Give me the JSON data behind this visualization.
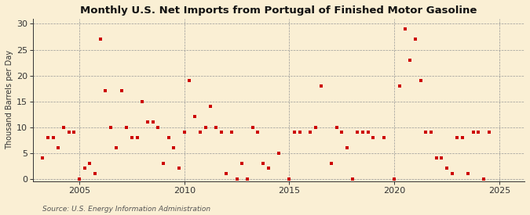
{
  "title": "Monthly U.S. Net Imports from Portugal of Finished Motor Gasoline",
  "ylabel": "Thousand Barrels per Day",
  "source": "Source: U.S. Energy Information Administration",
  "background_color": "#faefd4",
  "marker_color": "#cc0000",
  "xlim": [
    2002.8,
    2026.2
  ],
  "ylim": [
    -0.5,
    31
  ],
  "yticks": [
    0,
    5,
    10,
    15,
    20,
    25,
    30
  ],
  "xticks": [
    2005,
    2010,
    2015,
    2020,
    2025
  ],
  "data": [
    [
      2003.25,
      4
    ],
    [
      2003.5,
      8
    ],
    [
      2003.75,
      8
    ],
    [
      2004.0,
      6
    ],
    [
      2004.25,
      10
    ],
    [
      2004.5,
      9
    ],
    [
      2004.75,
      9
    ],
    [
      2005.0,
      0
    ],
    [
      2005.25,
      2
    ],
    [
      2005.5,
      3
    ],
    [
      2005.75,
      1
    ],
    [
      2006.0,
      27
    ],
    [
      2006.25,
      17
    ],
    [
      2006.5,
      10
    ],
    [
      2006.75,
      6
    ],
    [
      2007.0,
      17
    ],
    [
      2007.25,
      10
    ],
    [
      2007.5,
      8
    ],
    [
      2007.75,
      8
    ],
    [
      2008.0,
      15
    ],
    [
      2008.25,
      11
    ],
    [
      2008.5,
      11
    ],
    [
      2008.75,
      10
    ],
    [
      2009.0,
      3
    ],
    [
      2009.25,
      8
    ],
    [
      2009.5,
      6
    ],
    [
      2009.75,
      2
    ],
    [
      2010.0,
      9
    ],
    [
      2010.25,
      19
    ],
    [
      2010.5,
      12
    ],
    [
      2010.75,
      9
    ],
    [
      2011.0,
      10
    ],
    [
      2011.25,
      14
    ],
    [
      2011.5,
      10
    ],
    [
      2011.75,
      9
    ],
    [
      2012.0,
      1
    ],
    [
      2012.25,
      9
    ],
    [
      2012.5,
      0
    ],
    [
      2012.75,
      3
    ],
    [
      2013.0,
      0
    ],
    [
      2013.25,
      10
    ],
    [
      2013.5,
      9
    ],
    [
      2013.75,
      3
    ],
    [
      2014.0,
      2
    ],
    [
      2014.5,
      5
    ],
    [
      2015.0,
      0
    ],
    [
      2015.25,
      9
    ],
    [
      2015.5,
      9
    ],
    [
      2016.0,
      9
    ],
    [
      2016.25,
      10
    ],
    [
      2016.5,
      18
    ],
    [
      2017.0,
      3
    ],
    [
      2017.25,
      10
    ],
    [
      2017.5,
      9
    ],
    [
      2017.75,
      6
    ],
    [
      2018.0,
      0
    ],
    [
      2018.25,
      9
    ],
    [
      2018.5,
      9
    ],
    [
      2018.75,
      9
    ],
    [
      2019.0,
      8
    ],
    [
      2019.5,
      8
    ],
    [
      2020.0,
      0
    ],
    [
      2020.25,
      18
    ],
    [
      2020.5,
      29
    ],
    [
      2020.75,
      23
    ],
    [
      2021.0,
      27
    ],
    [
      2021.25,
      19
    ],
    [
      2021.5,
      9
    ],
    [
      2021.75,
      9
    ],
    [
      2022.0,
      4
    ],
    [
      2022.25,
      4
    ],
    [
      2022.5,
      2
    ],
    [
      2022.75,
      1
    ],
    [
      2023.0,
      8
    ],
    [
      2023.25,
      8
    ],
    [
      2023.5,
      1
    ],
    [
      2023.75,
      9
    ],
    [
      2024.0,
      9
    ],
    [
      2024.25,
      0
    ],
    [
      2024.5,
      9
    ]
  ]
}
